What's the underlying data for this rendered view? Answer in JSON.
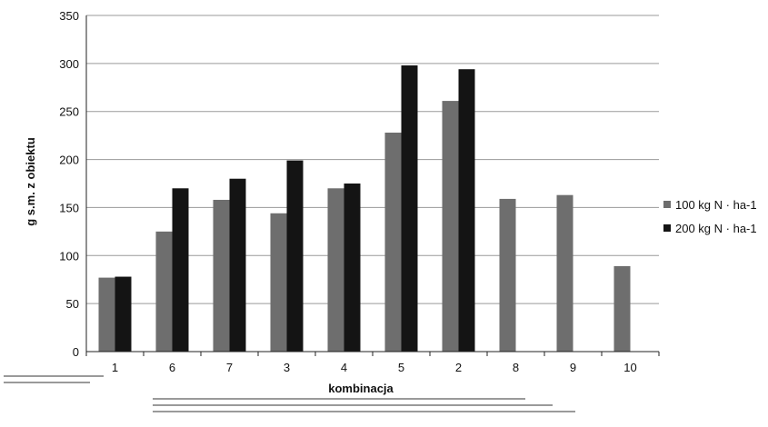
{
  "chart_data": {
    "type": "bar",
    "categories": [
      "1",
      "6",
      "7",
      "3",
      "4",
      "5",
      "2",
      "8",
      "9",
      "10"
    ],
    "series": [
      {
        "name": "100 kg N · ha-1",
        "color": "#6e6e6e",
        "values": [
          77,
          125,
          158,
          144,
          170,
          228,
          261,
          159,
          163,
          89
        ]
      },
      {
        "name": "200 kg N · ha-1",
        "color": "#141414",
        "values": [
          78,
          170,
          180,
          199,
          175,
          298,
          294,
          null,
          null,
          null
        ]
      }
    ],
    "title": "",
    "xlabel": "kombinacja",
    "ylabel": "g s.m. z obiektu",
    "ylim": [
      0,
      350
    ],
    "yticks": [
      0,
      50,
      100,
      150,
      200,
      250,
      300,
      350
    ],
    "grid": true,
    "legend": "right"
  }
}
